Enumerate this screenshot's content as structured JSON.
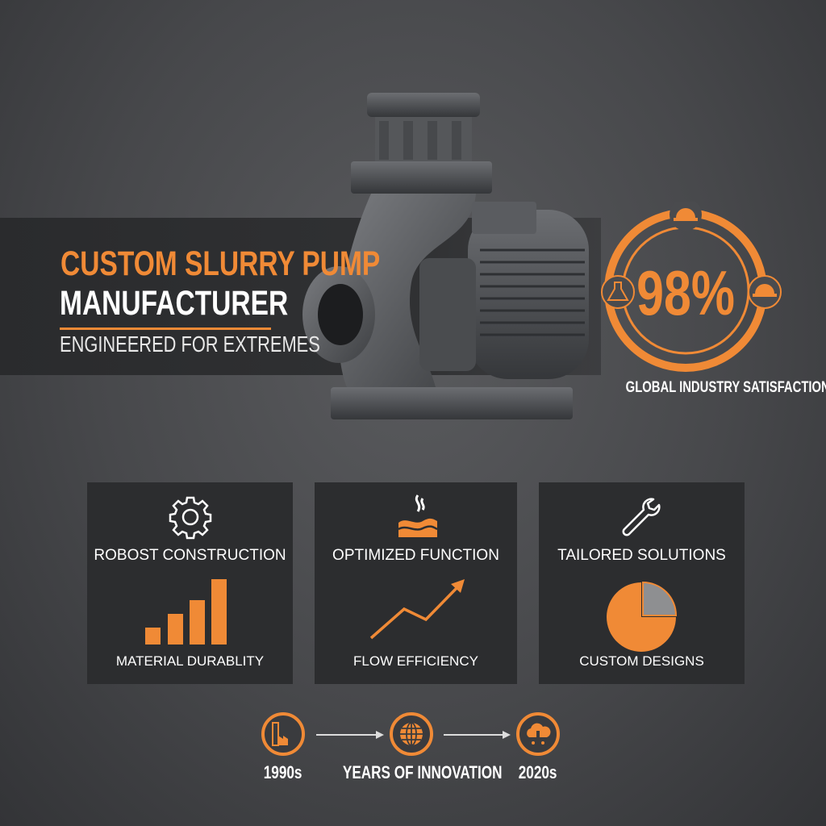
{
  "header": {
    "title_line1": "CUSTOM SLURRY PUMP",
    "title_line2": "MANUFACTURER",
    "tagline": "ENGINEERED FOR EXTREMES"
  },
  "stat": {
    "value": "98%",
    "caption": "GLOBAL INDUSTRY SATISFACTION",
    "icons": [
      "hard-hat-icon",
      "flask-icon",
      "hard-hat-icon"
    ]
  },
  "cards": [
    {
      "title": "ROBOST CONSTRUCTION",
      "subtitle": "MATERIAL DURABLITY",
      "icon": "gear-icon",
      "graphic": "bar-chart"
    },
    {
      "title": "OPTIMIZED FUNCTION",
      "subtitle": "FLOW EFFICIENCY",
      "icon": "hot-fluid-icon",
      "graphic": "rising-line-arrow"
    },
    {
      "title": "TAILORED SOLUTIONS",
      "subtitle": "CUSTOM DESIGNS",
      "icon": "wrench-icon",
      "graphic": "pie-chart"
    }
  ],
  "timeline": {
    "start": "1990s",
    "middle": "YEARS OF INNOVATION",
    "end": "2020s",
    "icons": [
      "factory-icon",
      "globe-icon",
      "cloud-icon"
    ]
  },
  "colors": {
    "accent": "#f08a36",
    "card_bg": "#2c2d2f",
    "text": "#ffffff",
    "pie_secondary": "#8e8f91"
  }
}
